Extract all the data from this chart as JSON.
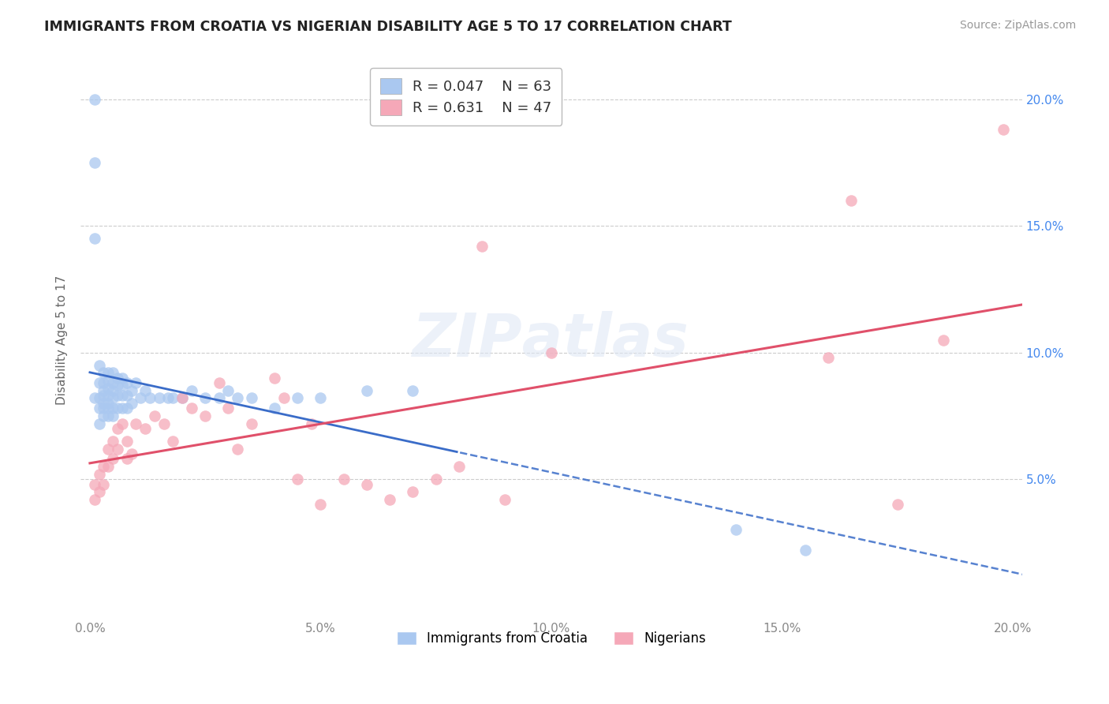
{
  "title": "IMMIGRANTS FROM CROATIA VS NIGERIAN DISABILITY AGE 5 TO 17 CORRELATION CHART",
  "source": "Source: ZipAtlas.com",
  "ylabel": "Disability Age 5 to 17",
  "xlim": [
    -0.002,
    0.202
  ],
  "ylim": [
    -0.005,
    0.215
  ],
  "xticks": [
    0.0,
    0.05,
    0.1,
    0.15,
    0.2
  ],
  "yticks": [
    0.0,
    0.05,
    0.1,
    0.15,
    0.2
  ],
  "xtick_labels": [
    "0.0%",
    "5.0%",
    "10.0%",
    "15.0%",
    "20.0%"
  ],
  "ytick_labels_right": [
    "",
    "5.0%",
    "10.0%",
    "15.0%",
    "20.0%"
  ],
  "legend_r1": "R = 0.047",
  "legend_n1": "N = 63",
  "legend_r2": "R = 0.631",
  "legend_n2": "N = 47",
  "blue_color": "#aac8f0",
  "pink_color": "#f5a8b8",
  "blue_line_color": "#3a6cc8",
  "pink_line_color": "#e0506a",
  "blue_r": 0.047,
  "pink_r": 0.631,
  "croatia_x": [
    0.001,
    0.001,
    0.001,
    0.001,
    0.002,
    0.002,
    0.002,
    0.002,
    0.002,
    0.003,
    0.003,
    0.003,
    0.003,
    0.003,
    0.003,
    0.003,
    0.004,
    0.004,
    0.004,
    0.004,
    0.004,
    0.004,
    0.004,
    0.005,
    0.005,
    0.005,
    0.005,
    0.005,
    0.005,
    0.006,
    0.006,
    0.006,
    0.006,
    0.007,
    0.007,
    0.007,
    0.007,
    0.008,
    0.008,
    0.008,
    0.009,
    0.009,
    0.01,
    0.011,
    0.012,
    0.013,
    0.015,
    0.017,
    0.018,
    0.02,
    0.022,
    0.025,
    0.028,
    0.03,
    0.032,
    0.035,
    0.04,
    0.045,
    0.05,
    0.06,
    0.07,
    0.14,
    0.155
  ],
  "croatia_y": [
    0.2,
    0.175,
    0.145,
    0.082,
    0.095,
    0.088,
    0.082,
    0.078,
    0.072,
    0.092,
    0.088,
    0.085,
    0.083,
    0.08,
    0.078,
    0.075,
    0.092,
    0.089,
    0.086,
    0.083,
    0.08,
    0.078,
    0.075,
    0.092,
    0.088,
    0.085,
    0.082,
    0.078,
    0.075,
    0.09,
    0.087,
    0.083,
    0.078,
    0.09,
    0.087,
    0.083,
    0.078,
    0.088,
    0.083,
    0.078,
    0.085,
    0.08,
    0.088,
    0.082,
    0.085,
    0.082,
    0.082,
    0.082,
    0.082,
    0.082,
    0.085,
    0.082,
    0.082,
    0.085,
    0.082,
    0.082,
    0.078,
    0.082,
    0.082,
    0.085,
    0.085,
    0.03,
    0.022
  ],
  "nigerian_x": [
    0.001,
    0.001,
    0.002,
    0.002,
    0.003,
    0.003,
    0.004,
    0.004,
    0.005,
    0.005,
    0.006,
    0.006,
    0.007,
    0.008,
    0.008,
    0.009,
    0.01,
    0.012,
    0.014,
    0.016,
    0.018,
    0.02,
    0.022,
    0.025,
    0.028,
    0.03,
    0.032,
    0.035,
    0.04,
    0.042,
    0.045,
    0.048,
    0.05,
    0.055,
    0.06,
    0.065,
    0.07,
    0.075,
    0.08,
    0.085,
    0.09,
    0.1,
    0.16,
    0.165,
    0.175,
    0.185,
    0.198
  ],
  "nigerian_y": [
    0.048,
    0.042,
    0.052,
    0.045,
    0.055,
    0.048,
    0.062,
    0.055,
    0.065,
    0.058,
    0.07,
    0.062,
    0.072,
    0.065,
    0.058,
    0.06,
    0.072,
    0.07,
    0.075,
    0.072,
    0.065,
    0.082,
    0.078,
    0.075,
    0.088,
    0.078,
    0.062,
    0.072,
    0.09,
    0.082,
    0.05,
    0.072,
    0.04,
    0.05,
    0.048,
    0.042,
    0.045,
    0.05,
    0.055,
    0.142,
    0.042,
    0.1,
    0.098,
    0.16,
    0.04,
    0.105,
    0.188
  ]
}
